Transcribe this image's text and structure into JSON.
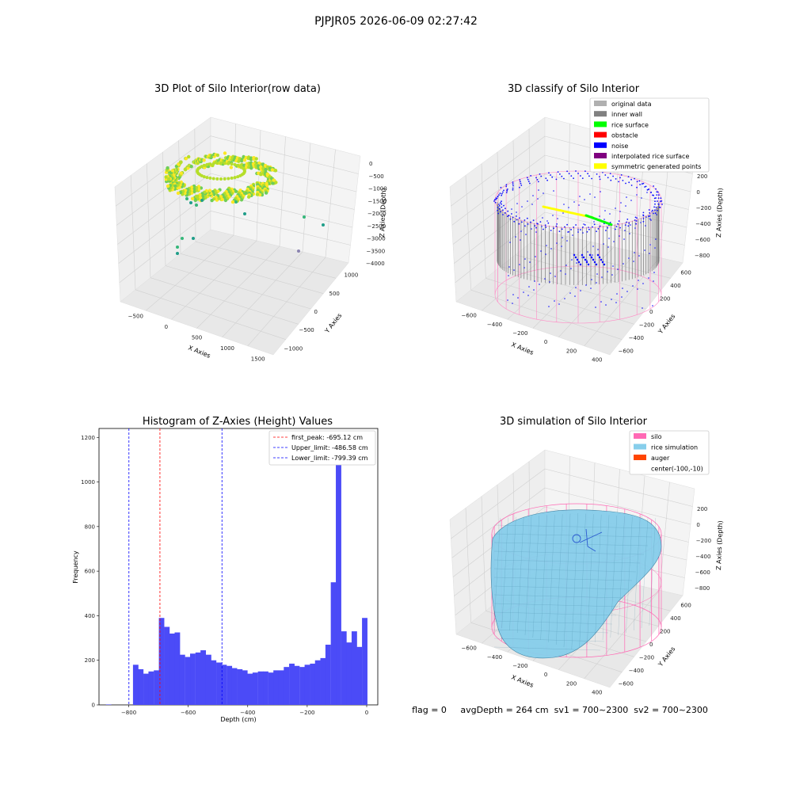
{
  "figure_title": "PJPJR05 2026-06-09 02:27:42",
  "footer": {
    "text": "flag = 0     avgDepth = 264 cm  sv1 = 700~2300  sv2 = 700~2300"
  },
  "chart_data": [
    {
      "type": "scatter",
      "dimension": "3d",
      "title": "3D Plot of Silo Interior(row data)",
      "xlabel": "X Axies",
      "ylabel": "Y Axies",
      "zlabel": "Z Axies (Depth)",
      "x_ticks": [
        "−500",
        "0",
        "500",
        "1000",
        "1500"
      ],
      "y_ticks": [
        "−1000",
        "−500",
        "0",
        "500",
        "1000"
      ],
      "z_ticks": [
        "0",
        "−500",
        "−1000",
        "−1500",
        "−2000",
        "−2500",
        "−3000",
        "−3500",
        "−4000"
      ],
      "grid": true,
      "colors": [
        "#fde725",
        "#b5de2b",
        "#6ece58",
        "#35b779",
        "#1f9e89",
        "#5ec962"
      ]
    },
    {
      "type": "scatter",
      "dimension": "3d",
      "title": "3D classify of Silo Interior",
      "xlabel": "X Axies",
      "ylabel": "Y Axies",
      "zlabel": "Z Axies (Depth)",
      "x_ticks": [
        "−600",
        "−400",
        "−200",
        "0",
        "200",
        "400"
      ],
      "y_ticks": [
        "−600",
        "−400",
        "−200",
        "0",
        "200",
        "400",
        "600"
      ],
      "z_ticks": [
        "200",
        "0",
        "−200",
        "−400",
        "−600",
        "−800"
      ],
      "grid": true,
      "legend_position": "top-right",
      "legend": [
        {
          "label": "original data",
          "color": "#b0b0b0"
        },
        {
          "label": "inner wall",
          "color": "#808080"
        },
        {
          "label": "rice surface",
          "color": "#00ff00"
        },
        {
          "label": "obstacle",
          "color": "#ff0000"
        },
        {
          "label": "noise",
          "color": "#0000ff"
        },
        {
          "label": "interpolated rice surface",
          "color": "#800080"
        },
        {
          "label": "symmetric generated points",
          "color": "#ffff00"
        }
      ]
    },
    {
      "type": "bar",
      "title": "Histogram of Z-Axies (Height) Values",
      "xlabel": "Depth (cm)",
      "ylabel": "Frequency",
      "xlim": [
        -900,
        0
      ],
      "ylim": [
        0,
        1240
      ],
      "x_ticks": [
        -800,
        -600,
        -400,
        -200,
        0
      ],
      "y_ticks": [
        0,
        200,
        400,
        600,
        800,
        1000,
        1200
      ],
      "bar_color": "#4b4bf7",
      "bin_width": 17.5,
      "bins": [
        {
          "x": -868,
          "y": 2
        },
        {
          "x": -777,
          "y": 180
        },
        {
          "x": -760,
          "y": 160
        },
        {
          "x": -742,
          "y": 140
        },
        {
          "x": -725,
          "y": 150
        },
        {
          "x": -707,
          "y": 155
        },
        {
          "x": -690,
          "y": 390
        },
        {
          "x": -672,
          "y": 350
        },
        {
          "x": -655,
          "y": 320
        },
        {
          "x": -637,
          "y": 325
        },
        {
          "x": -620,
          "y": 225
        },
        {
          "x": -602,
          "y": 215
        },
        {
          "x": -585,
          "y": 230
        },
        {
          "x": -567,
          "y": 235
        },
        {
          "x": -550,
          "y": 245
        },
        {
          "x": -532,
          "y": 225
        },
        {
          "x": -515,
          "y": 200
        },
        {
          "x": -497,
          "y": 190
        },
        {
          "x": -480,
          "y": 180
        },
        {
          "x": -462,
          "y": 175
        },
        {
          "x": -445,
          "y": 165
        },
        {
          "x": -427,
          "y": 160
        },
        {
          "x": -410,
          "y": 155
        },
        {
          "x": -392,
          "y": 140
        },
        {
          "x": -375,
          "y": 145
        },
        {
          "x": -357,
          "y": 150
        },
        {
          "x": -340,
          "y": 150
        },
        {
          "x": -322,
          "y": 145
        },
        {
          "x": -305,
          "y": 155
        },
        {
          "x": -287,
          "y": 155
        },
        {
          "x": -270,
          "y": 170
        },
        {
          "x": -252,
          "y": 185
        },
        {
          "x": -235,
          "y": 175
        },
        {
          "x": -217,
          "y": 170
        },
        {
          "x": -200,
          "y": 180
        },
        {
          "x": -182,
          "y": 185
        },
        {
          "x": -165,
          "y": 200
        },
        {
          "x": -147,
          "y": 210
        },
        {
          "x": -130,
          "y": 270
        },
        {
          "x": -112,
          "y": 550
        },
        {
          "x": -95,
          "y": 1165
        },
        {
          "x": -77,
          "y": 330
        },
        {
          "x": -60,
          "y": 280
        },
        {
          "x": -42,
          "y": 330
        },
        {
          "x": -25,
          "y": 260
        },
        {
          "x": -7,
          "y": 390
        }
      ],
      "vlines": [
        {
          "x": -695.12,
          "label": "first_peak: -695.12 cm",
          "color": "#ff0000",
          "style": "dashed"
        },
        {
          "x": -486.58,
          "label": "Upper_limit: -486.58 cm",
          "color": "#0000ff",
          "style": "dashed"
        },
        {
          "x": -799.39,
          "label": "Lower_limit: -799.39 cm",
          "color": "#0000ff",
          "style": "dashed"
        }
      ],
      "legend_position": "top-right"
    },
    {
      "type": "surface",
      "dimension": "3d",
      "title": "3D simulation of Silo Interior",
      "xlabel": "X Axies",
      "ylabel": "Y Axies",
      "zlabel": "Z Axies (Depth)",
      "x_ticks": [
        "−600",
        "−400",
        "−200",
        "0",
        "200",
        "400"
      ],
      "y_ticks": [
        "−600",
        "−400",
        "−200",
        "0",
        "200",
        "400",
        "600"
      ],
      "z_ticks": [
        "200",
        "0",
        "−200",
        "−400",
        "−600",
        "−800"
      ],
      "grid": true,
      "legend_position": "top-right",
      "legend": [
        {
          "label": "silo",
          "color": "#ff69b4"
        },
        {
          "label": "rice simulation",
          "color": "#87ceeb"
        },
        {
          "label": "auger",
          "color": "#ff4500"
        },
        {
          "label": "center(-100,-10)",
          "color": ""
        }
      ]
    }
  ]
}
